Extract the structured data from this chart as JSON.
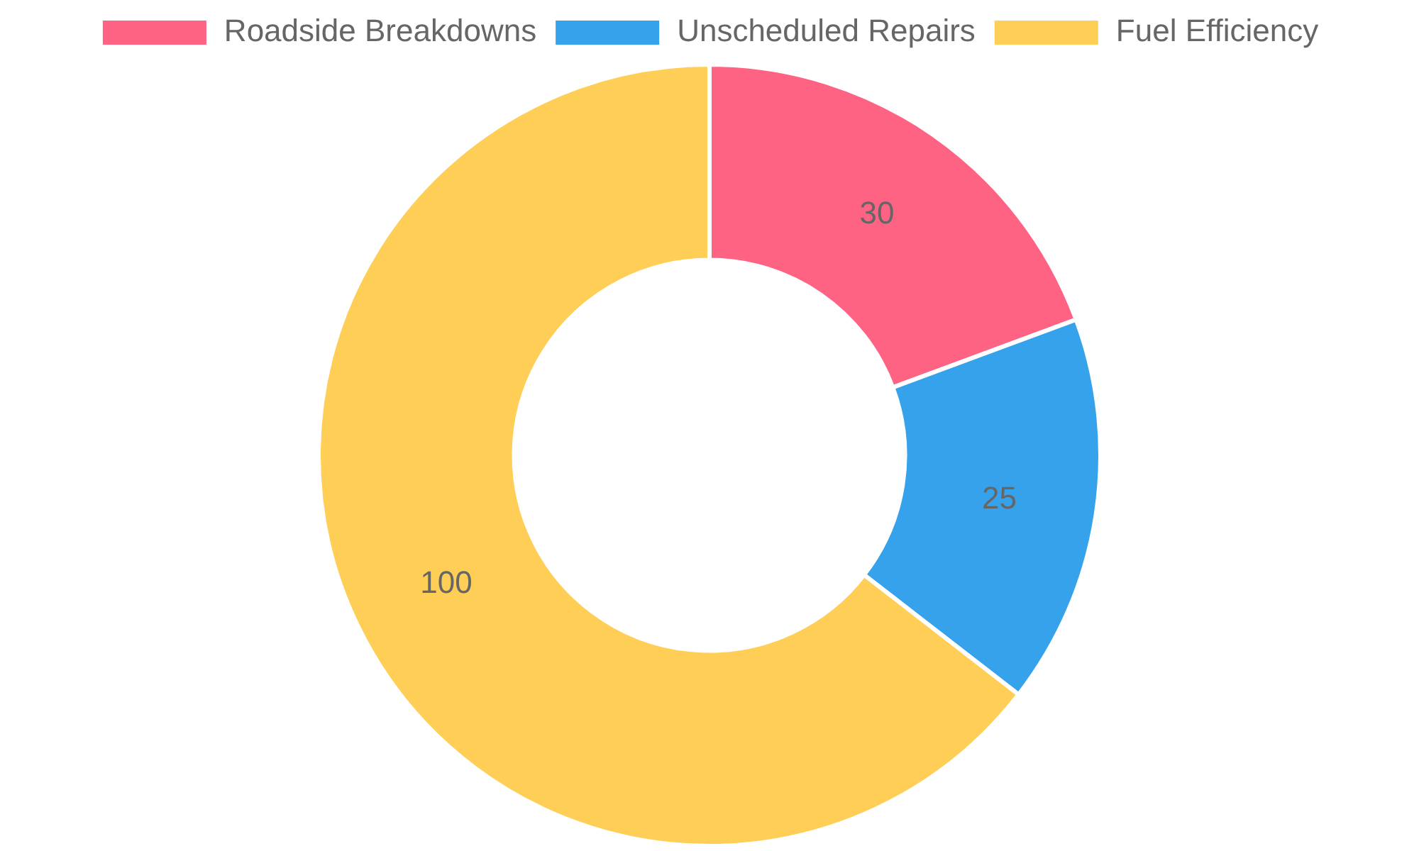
{
  "chart_data": {
    "type": "donut",
    "categories": [
      "Roadside Breakdowns",
      "Unscheduled Repairs",
      "Fuel Efficiency"
    ],
    "values": [
      30,
      25,
      100
    ],
    "colors": [
      "#ff6384",
      "#36a2eb",
      "#ffce56"
    ],
    "legend": "top",
    "data_labels": true
  }
}
